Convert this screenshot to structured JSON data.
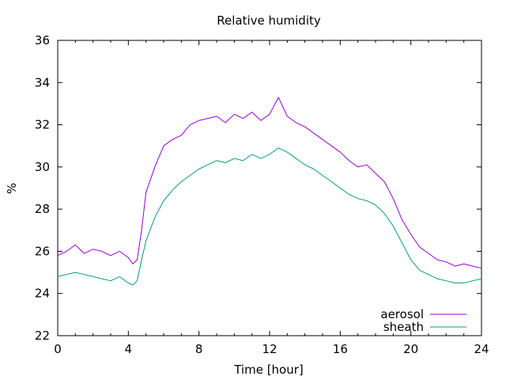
{
  "chart_data": {
    "type": "line",
    "title": "Relative humidity",
    "xlabel": "Time [hour]",
    "ylabel": "%",
    "xlim": [
      0,
      24
    ],
    "ylim": [
      22,
      36
    ],
    "x_ticks": [
      0,
      4,
      8,
      12,
      16,
      20,
      24
    ],
    "y_ticks": [
      22,
      24,
      26,
      28,
      30,
      32,
      34,
      36
    ],
    "grid": false,
    "legend_position": "bottom-right",
    "series": [
      {
        "name": "aerosol",
        "color": "#9400d3",
        "x": [
          0.0,
          0.5,
          1.0,
          1.5,
          2.0,
          2.5,
          3.0,
          3.5,
          4.0,
          4.25,
          4.5,
          4.75,
          5.0,
          5.5,
          6.0,
          6.5,
          7.0,
          7.5,
          8.0,
          8.5,
          9.0,
          9.5,
          10.0,
          10.5,
          11.0,
          11.5,
          12.0,
          12.5,
          13.0,
          13.5,
          14.0,
          14.5,
          15.0,
          15.5,
          16.0,
          16.5,
          17.0,
          17.5,
          18.0,
          18.5,
          19.0,
          19.5,
          20.0,
          20.5,
          21.0,
          21.5,
          22.0,
          22.5,
          23.0,
          23.5,
          24.0
        ],
        "values": [
          25.8,
          26.0,
          26.3,
          25.9,
          26.1,
          26.0,
          25.8,
          26.0,
          25.7,
          25.4,
          25.6,
          27.0,
          28.8,
          30.0,
          31.0,
          31.3,
          31.5,
          32.0,
          32.2,
          32.3,
          32.4,
          32.1,
          32.5,
          32.3,
          32.6,
          32.2,
          32.5,
          33.3,
          32.4,
          32.1,
          31.9,
          31.6,
          31.3,
          31.0,
          30.7,
          30.3,
          30.0,
          30.1,
          29.7,
          29.3,
          28.5,
          27.5,
          26.8,
          26.2,
          25.9,
          25.6,
          25.5,
          25.3,
          25.4,
          25.3,
          25.2
        ]
      },
      {
        "name": "sheath",
        "color": "#009e73",
        "x": [
          0.0,
          0.5,
          1.0,
          1.5,
          2.0,
          2.5,
          3.0,
          3.5,
          4.0,
          4.25,
          4.5,
          4.75,
          5.0,
          5.5,
          6.0,
          6.5,
          7.0,
          7.5,
          8.0,
          8.5,
          9.0,
          9.5,
          10.0,
          10.5,
          11.0,
          11.5,
          12.0,
          12.5,
          13.0,
          13.5,
          14.0,
          14.5,
          15.0,
          15.5,
          16.0,
          16.5,
          17.0,
          17.5,
          18.0,
          18.5,
          19.0,
          19.5,
          20.0,
          20.5,
          21.0,
          21.5,
          22.0,
          22.5,
          23.0,
          23.5,
          24.0
        ],
        "values": [
          24.8,
          24.9,
          25.0,
          24.9,
          24.8,
          24.7,
          24.6,
          24.8,
          24.5,
          24.4,
          24.6,
          25.6,
          26.5,
          27.6,
          28.4,
          28.9,
          29.3,
          29.6,
          29.9,
          30.1,
          30.3,
          30.2,
          30.4,
          30.3,
          30.6,
          30.4,
          30.6,
          30.9,
          30.7,
          30.4,
          30.1,
          29.9,
          29.6,
          29.3,
          29.0,
          28.7,
          28.5,
          28.4,
          28.2,
          27.8,
          27.2,
          26.4,
          25.6,
          25.1,
          24.9,
          24.7,
          24.6,
          24.5,
          24.5,
          24.6,
          24.7
        ]
      }
    ]
  }
}
